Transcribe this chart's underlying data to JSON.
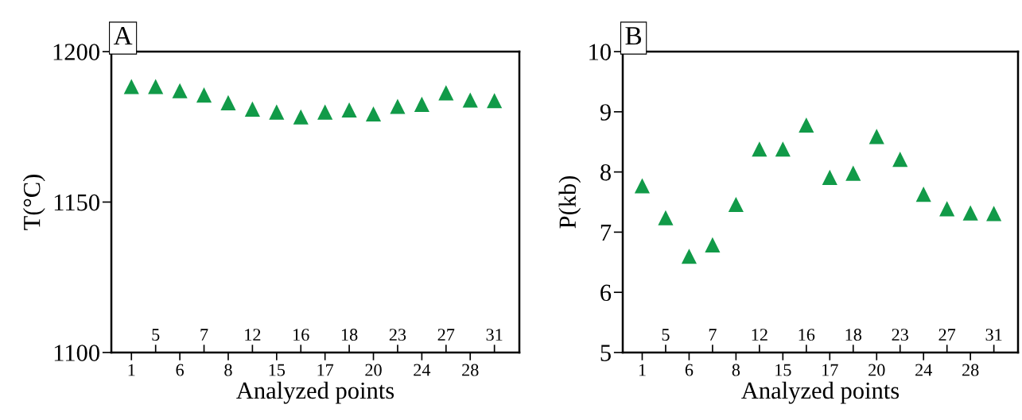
{
  "chart_data": [
    {
      "type": "scatter",
      "title": "A",
      "xlabel": "Analyzed points",
      "ylabel": "T(°C)",
      "marker": "triangle",
      "categories": [
        "1",
        "5",
        "6",
        "7",
        "8",
        "12",
        "15",
        "16",
        "17",
        "18",
        "20",
        "23",
        "24",
        "27",
        "28",
        "31"
      ],
      "series": [
        {
          "color": "#119a48",
          "values": [
            1188.4,
            1188.4,
            1187.0,
            1185.6,
            1183.0,
            1180.9,
            1179.9,
            1178.3,
            1179.9,
            1180.6,
            1179.3,
            1181.8,
            1182.5,
            1186.3,
            1183.9,
            1183.7
          ]
        }
      ],
      "ylim": [
        1100,
        1200
      ],
      "yticks": [
        1100,
        1150,
        1200
      ],
      "grid": false,
      "legend": false
    },
    {
      "type": "scatter",
      "title": "B",
      "xlabel": "Analyzed points",
      "ylabel": "P(kb)",
      "marker": "triangle",
      "categories": [
        "1",
        "5",
        "6",
        "7",
        "8",
        "12",
        "15",
        "16",
        "17",
        "18",
        "20",
        "23",
        "24",
        "27",
        "28",
        "31"
      ],
      "series": [
        {
          "color": "#119a48",
          "values": [
            7.77,
            7.24,
            6.6,
            6.79,
            7.46,
            8.38,
            8.38,
            8.78,
            7.91,
            7.98,
            8.59,
            8.21,
            7.63,
            7.39,
            7.32,
            7.31
          ]
        }
      ],
      "ylim": [
        5,
        10
      ],
      "yticks": [
        5,
        6,
        7,
        8,
        9,
        10
      ],
      "grid": false,
      "legend": false
    }
  ]
}
